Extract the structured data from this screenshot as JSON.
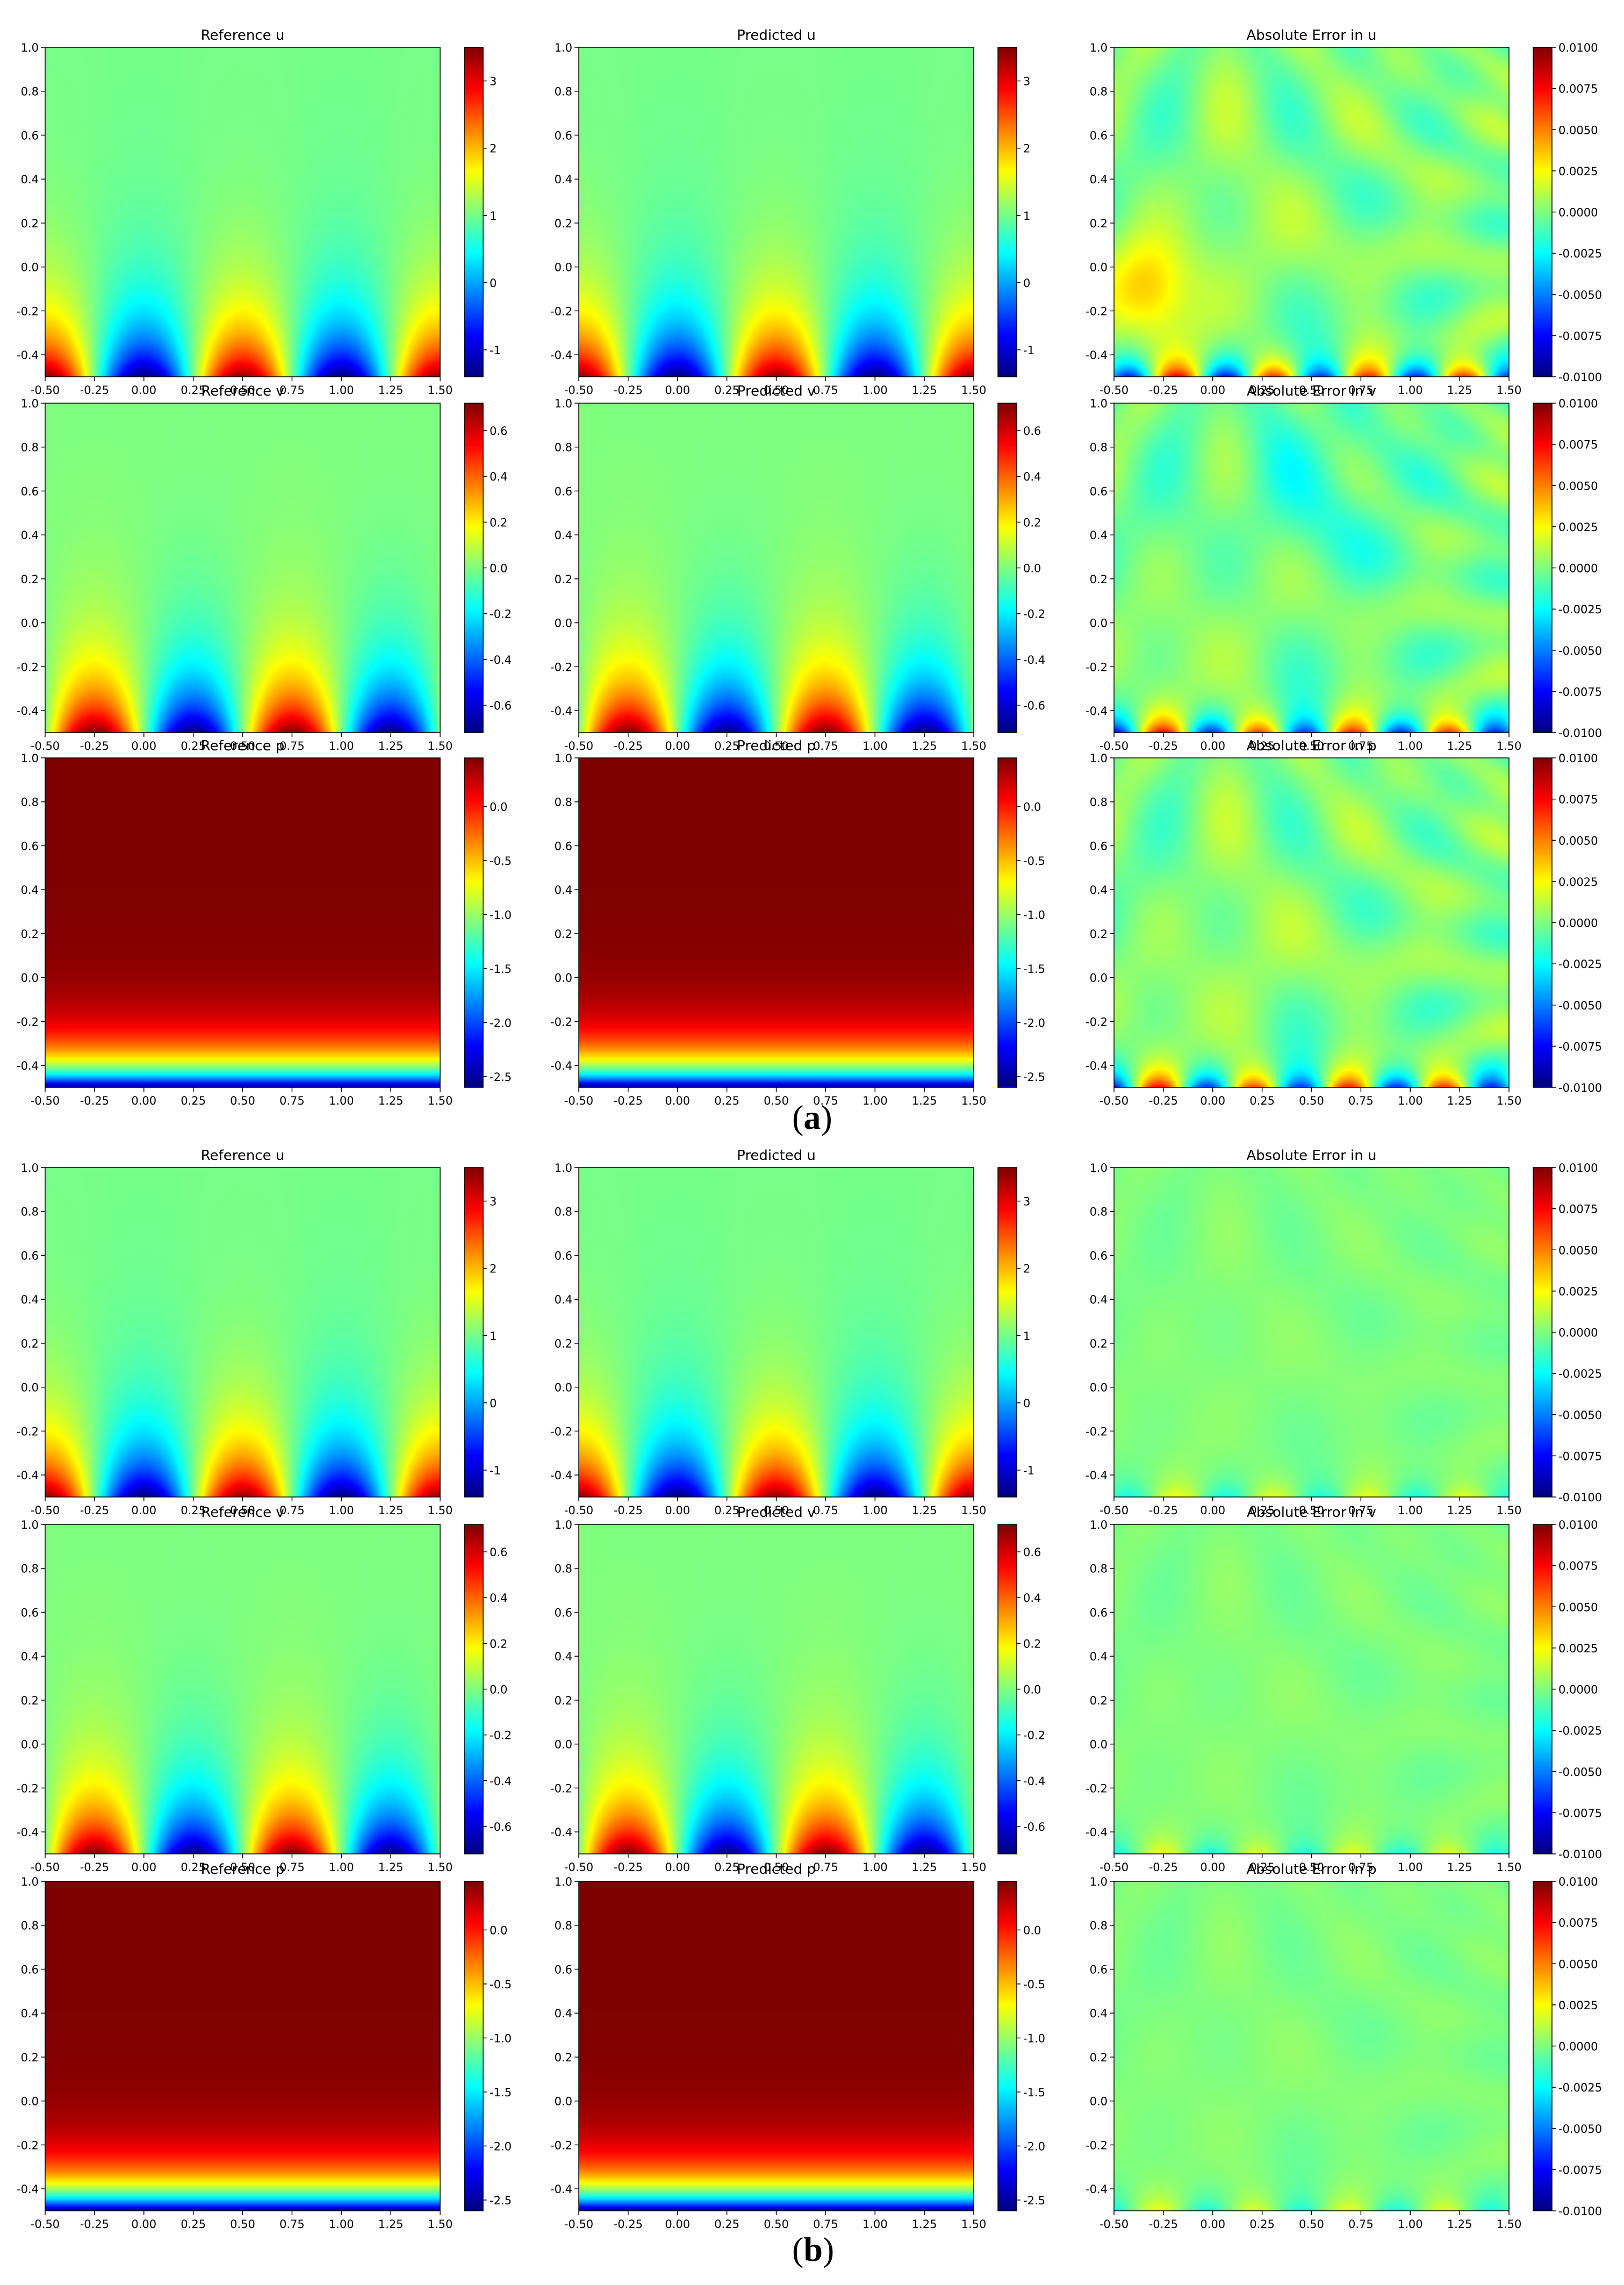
{
  "figure": {
    "panel_a_letter": "a",
    "panel_b_letter": "b"
  },
  "axes_common": {
    "xlim": [
      -0.5,
      1.5
    ],
    "ylim": [
      -0.5,
      1.0
    ],
    "xticks": [
      "-0.50",
      "-0.25",
      "0.00",
      "0.25",
      "0.50",
      "0.75",
      "1.00",
      "1.25",
      "1.50"
    ],
    "yticks": [
      "-0.4",
      "-0.2",
      "0.0",
      "0.2",
      "0.4",
      "0.6",
      "0.8",
      "1.0"
    ],
    "colormap": "jet",
    "grid": false
  },
  "colorbars": {
    "u": {
      "range": [
        -1.4,
        3.5
      ],
      "ticks": [
        "-1",
        "0",
        "1",
        "2",
        "3"
      ]
    },
    "v": {
      "range": [
        -0.72,
        0.72
      ],
      "ticks": [
        "-0.6",
        "-0.4",
        "-0.2",
        "0.0",
        "0.2",
        "0.4",
        "0.6"
      ]
    },
    "p": {
      "range": [
        -2.6,
        0.45
      ],
      "ticks": [
        "-2.5",
        "-2.0",
        "-1.5",
        "-1.0",
        "-0.5",
        "0.0"
      ]
    },
    "err": {
      "range": [
        -0.01,
        0.01
      ],
      "ticks": [
        "-0.0100",
        "-0.0075",
        "-0.0050",
        "-0.0025",
        "0.0000",
        "0.0025",
        "0.0050",
        "0.0075",
        "0.0100"
      ]
    }
  },
  "chart_data": [
    {
      "panel": "a",
      "title": "Reference u",
      "type": "heatmap",
      "field": "u",
      "kind": "ref",
      "x_range": [
        -0.5,
        1.5
      ],
      "y_range": [
        -0.5,
        1.0
      ],
      "color_range": [
        -1.4,
        3.5
      ]
    },
    {
      "panel": "a",
      "title": "Predicted u",
      "type": "heatmap",
      "field": "u",
      "kind": "pred",
      "x_range": [
        -0.5,
        1.5
      ],
      "y_range": [
        -0.5,
        1.0
      ],
      "color_range": [
        -1.4,
        3.5
      ]
    },
    {
      "panel": "a",
      "title": "Absolute Error in u",
      "type": "heatmap",
      "field": "u",
      "kind": "err",
      "x_range": [
        -0.5,
        1.5
      ],
      "y_range": [
        -0.5,
        1.0
      ],
      "color_range": [
        -0.01,
        0.01
      ]
    },
    {
      "panel": "a",
      "title": "Reference v",
      "type": "heatmap",
      "field": "v",
      "kind": "ref",
      "x_range": [
        -0.5,
        1.5
      ],
      "y_range": [
        -0.5,
        1.0
      ],
      "color_range": [
        -0.72,
        0.72
      ]
    },
    {
      "panel": "a",
      "title": "Predicted v",
      "type": "heatmap",
      "field": "v",
      "kind": "pred",
      "x_range": [
        -0.5,
        1.5
      ],
      "y_range": [
        -0.5,
        1.0
      ],
      "color_range": [
        -0.72,
        0.72
      ]
    },
    {
      "panel": "a",
      "title": "Absolute Error in v",
      "type": "heatmap",
      "field": "v",
      "kind": "err",
      "x_range": [
        -0.5,
        1.5
      ],
      "y_range": [
        -0.5,
        1.0
      ],
      "color_range": [
        -0.01,
        0.01
      ]
    },
    {
      "panel": "a",
      "title": "Reference p",
      "type": "heatmap",
      "field": "p",
      "kind": "ref",
      "x_range": [
        -0.5,
        1.5
      ],
      "y_range": [
        -0.5,
        1.0
      ],
      "color_range": [
        -2.6,
        0.45
      ]
    },
    {
      "panel": "a",
      "title": "Predicted p",
      "type": "heatmap",
      "field": "p",
      "kind": "pred",
      "x_range": [
        -0.5,
        1.5
      ],
      "y_range": [
        -0.5,
        1.0
      ],
      "color_range": [
        -2.6,
        0.45
      ]
    },
    {
      "panel": "a",
      "title": "Absolute Error in p",
      "type": "heatmap",
      "field": "p",
      "kind": "err",
      "x_range": [
        -0.5,
        1.5
      ],
      "y_range": [
        -0.5,
        1.0
      ],
      "color_range": [
        -0.01,
        0.01
      ]
    },
    {
      "panel": "b",
      "title": "Reference u",
      "type": "heatmap",
      "field": "u",
      "kind": "ref",
      "x_range": [
        -0.5,
        1.5
      ],
      "y_range": [
        -0.5,
        1.0
      ],
      "color_range": [
        -1.4,
        3.5
      ]
    },
    {
      "panel": "b",
      "title": "Predicted u",
      "type": "heatmap",
      "field": "u",
      "kind": "pred",
      "x_range": [
        -0.5,
        1.5
      ],
      "y_range": [
        -0.5,
        1.0
      ],
      "color_range": [
        -1.4,
        3.5
      ]
    },
    {
      "panel": "b",
      "title": "Absolute Error in u",
      "type": "heatmap",
      "field": "u",
      "kind": "err",
      "x_range": [
        -0.5,
        1.5
      ],
      "y_range": [
        -0.5,
        1.0
      ],
      "color_range": [
        -0.01,
        0.01
      ]
    },
    {
      "panel": "b",
      "title": "Reference v",
      "type": "heatmap",
      "field": "v",
      "kind": "ref",
      "x_range": [
        -0.5,
        1.5
      ],
      "y_range": [
        -0.5,
        1.0
      ],
      "color_range": [
        -0.72,
        0.72
      ]
    },
    {
      "panel": "b",
      "title": "Predicted v",
      "type": "heatmap",
      "field": "v",
      "kind": "pred",
      "x_range": [
        -0.5,
        1.5
      ],
      "y_range": [
        -0.5,
        1.0
      ],
      "color_range": [
        -0.72,
        0.72
      ]
    },
    {
      "panel": "b",
      "title": "Absolute Error in v",
      "type": "heatmap",
      "field": "v",
      "kind": "err",
      "x_range": [
        -0.5,
        1.5
      ],
      "y_range": [
        -0.5,
        1.0
      ],
      "color_range": [
        -0.01,
        0.01
      ]
    },
    {
      "panel": "b",
      "title": "Reference p",
      "type": "heatmap",
      "field": "p",
      "kind": "ref",
      "x_range": [
        -0.5,
        1.5
      ],
      "y_range": [
        -0.5,
        1.0
      ],
      "color_range": [
        -2.6,
        0.45
      ]
    },
    {
      "panel": "b",
      "title": "Predicted p",
      "type": "heatmap",
      "field": "p",
      "kind": "pred",
      "x_range": [
        -0.5,
        1.5
      ],
      "y_range": [
        -0.5,
        1.0
      ],
      "color_range": [
        -2.6,
        0.45
      ]
    },
    {
      "panel": "b",
      "title": "Absolute Error in p",
      "type": "heatmap",
      "field": "p",
      "kind": "err",
      "x_range": [
        -0.5,
        1.5
      ],
      "y_range": [
        -0.5,
        1.0
      ],
      "color_range": [
        -0.01,
        0.01
      ]
    }
  ]
}
